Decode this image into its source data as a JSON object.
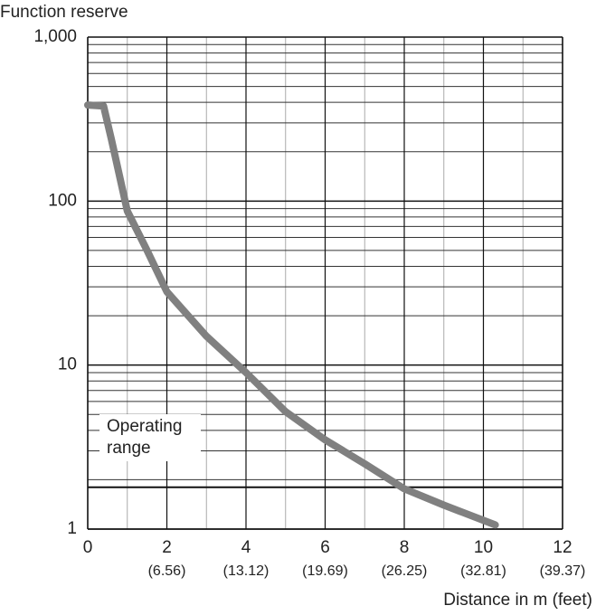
{
  "chart_data": {
    "type": "line",
    "title": "Function reserve",
    "x_label": "Distance in m (feet)",
    "log_y": true,
    "grid": true,
    "xlim": [
      0,
      12
    ],
    "xticks": [
      0,
      2,
      4,
      6,
      8,
      10,
      12
    ],
    "xtick_sublabels": [
      null,
      "(6.56)",
      "(13.12)",
      "(19.69)",
      "(26.25)",
      "(32.81)",
      "(39.37)"
    ],
    "ylim": [
      1,
      1000
    ],
    "yticks": [
      1,
      10,
      100,
      {
        "value": 1000,
        "label": "1,000"
      }
    ],
    "annotation": "Operating\nrange",
    "reference_line": 1.8,
    "series": [
      {
        "name": "Function reserve",
        "color": "#808080",
        "x": [
          0,
          0.4,
          0.6,
          1,
          1.5,
          2,
          3,
          4,
          5,
          6,
          7,
          8,
          9,
          10.3
        ],
        "values": [
          385,
          380,
          237,
          87,
          50,
          28,
          15,
          9,
          5.2,
          3.5,
          2.5,
          1.76,
          1.4,
          1.06
        ]
      }
    ]
  }
}
